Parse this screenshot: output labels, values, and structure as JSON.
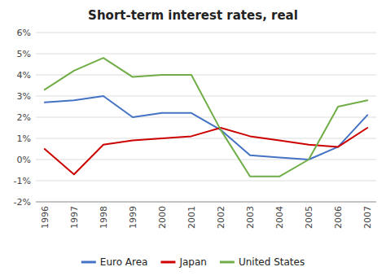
{
  "chart_data": {
    "type": "line",
    "title": "Short-term interest rates, real",
    "x": [
      1996,
      1997,
      1998,
      1999,
      2000,
      2001,
      2002,
      2003,
      2004,
      2005,
      2006,
      2007
    ],
    "series": [
      {
        "name": "Euro Area",
        "color": "#4472C4",
        "values": [
          2.7,
          2.8,
          3.0,
          2.0,
          2.2,
          2.2,
          1.4,
          0.2,
          0.1,
          0.0,
          0.6,
          2.1
        ]
      },
      {
        "name": "Japan",
        "color": "#CC0000",
        "values": [
          0.5,
          -0.7,
          0.7,
          0.9,
          1.0,
          1.1,
          1.5,
          1.1,
          0.9,
          0.7,
          0.6,
          1.5
        ]
      },
      {
        "name": "United States",
        "color": "#70AD47",
        "values": [
          3.3,
          4.2,
          4.8,
          3.9,
          4.0,
          4.0,
          1.4,
          -0.8,
          -0.8,
          0.0,
          2.5,
          2.8
        ]
      }
    ],
    "xlim": [
      1995.7,
      2007.3
    ],
    "xticks": [
      1996,
      1997,
      1998,
      1999,
      2000,
      2001,
      2002,
      2003,
      2004,
      2005,
      2006,
      2007
    ],
    "ylim": [
      -2,
      6
    ],
    "yticks": [
      {
        "value": -2,
        "label": "-2%"
      },
      {
        "value": -1,
        "label": "-1%"
      },
      {
        "value": 0,
        "label": "0%"
      },
      {
        "value": 1,
        "label": "1%"
      },
      {
        "value": 2,
        "label": "2%"
      },
      {
        "value": 3,
        "label": "3%"
      },
      {
        "value": 4,
        "label": "4%"
      },
      {
        "value": 5,
        "label": "5%"
      },
      {
        "value": 6,
        "label": "6%"
      }
    ],
    "grid": true,
    "legend": "bottom"
  }
}
